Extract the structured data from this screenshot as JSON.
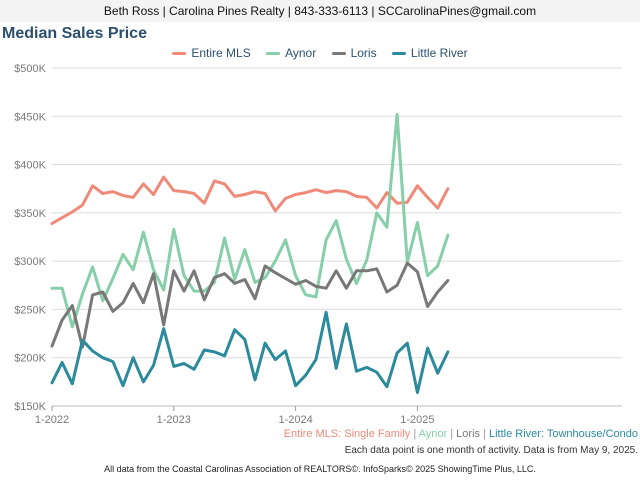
{
  "header": {
    "contact": "Beth Ross | Carolina Pines Realty | 843-333-6113 | SCCarolinaPines@gmail.com",
    "title": "Median Sales Price"
  },
  "subtitle": {
    "entire": "Entire MLS: Single Family",
    "aynor": "Aynor",
    "loris": "Loris",
    "little_river": "Little River: Townhouse/Condo",
    "sep": " | "
  },
  "note": "Each data point is one month of activity. Data is from May 9, 2025.",
  "footer": "All data from the Coastal Carolinas Association of REALTORS©. InfoSparks© 2025 ShowingTime Plus, LLC.",
  "chart_data": {
    "type": "line",
    "ylim": [
      150000,
      500000
    ],
    "yticks": [
      "$150K",
      "$200K",
      "$250K",
      "$300K",
      "$350K",
      "$400K",
      "$450K",
      "$500K"
    ],
    "xticks": [
      "1-2022",
      "1-2023",
      "1-2024",
      "1-2025"
    ],
    "start": "2022-01",
    "grid": true,
    "legend_position": "top",
    "series": [
      {
        "name": "Entire MLS",
        "color": "#f08a78",
        "values": [
          339000,
          345000,
          351000,
          358000,
          378000,
          370000,
          372000,
          368000,
          366000,
          380000,
          369000,
          387000,
          373000,
          372000,
          370000,
          360000,
          383000,
          380000,
          367000,
          369000,
          372000,
          370000,
          352000,
          365000,
          369000,
          371000,
          374000,
          371000,
          373000,
          372000,
          367000,
          366000,
          355000,
          371000,
          360000,
          361000,
          378000,
          366000,
          355000,
          375000
        ]
      },
      {
        "name": "Aynor",
        "color": "#86cfa8",
        "values": [
          272000,
          272000,
          232000,
          266000,
          294000,
          259000,
          282000,
          307000,
          291000,
          330000,
          291000,
          270000,
          333000,
          285000,
          269000,
          269000,
          278000,
          324000,
          281000,
          312000,
          278000,
          283000,
          300000,
          322000,
          285000,
          265000,
          263000,
          322000,
          342000,
          302000,
          277000,
          301000,
          350000,
          335000,
          452000,
          299000,
          340000,
          285000,
          295000,
          327000
        ]
      },
      {
        "name": "Loris",
        "color": "#787878",
        "values": [
          212000,
          239000,
          254000,
          211000,
          265000,
          268000,
          248000,
          257000,
          277000,
          257000,
          287000,
          234000,
          290000,
          269000,
          290000,
          260000,
          283000,
          287000,
          277000,
          281000,
          261000,
          295000,
          288000,
          282000,
          276000,
          280000,
          274000,
          272000,
          290000,
          272000,
          290000,
          290000,
          292000,
          268000,
          275000,
          298000,
          289000,
          253000,
          268000,
          280000
        ]
      },
      {
        "name": "Little River",
        "color": "#2b8a9c",
        "values": [
          174000,
          195000,
          173000,
          218000,
          207000,
          200000,
          196000,
          171000,
          200000,
          175000,
          192000,
          230000,
          191000,
          194000,
          188000,
          208000,
          206000,
          202000,
          229000,
          219000,
          177000,
          215000,
          198000,
          207000,
          171000,
          182000,
          198000,
          247000,
          189000,
          235000,
          186000,
          190000,
          185000,
          170000,
          205000,
          215000,
          164000,
          210000,
          184000,
          206000
        ]
      }
    ]
  }
}
